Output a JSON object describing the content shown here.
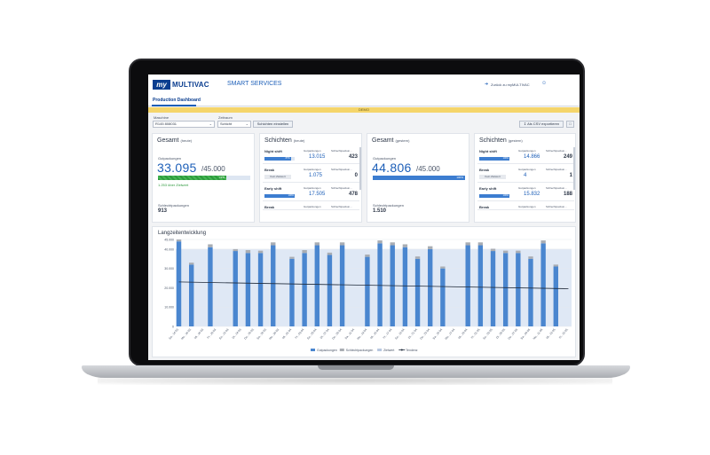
{
  "app": {
    "logo_badge": "my",
    "logo_text": "MULTIVAC",
    "logo_suffix": "SMART SERVICES",
    "header_link": "Zurück zu myMULTIVAC",
    "tab": "Production Dashboard",
    "demo_banner": "DEMO"
  },
  "controls": {
    "machine_label": "Maschine",
    "machine_value": "R145 808031",
    "period_label": "Zeitraum",
    "period_value": "Schicht",
    "shift_button": "Schichten einstellen",
    "export_button": "Als CSV exportieren"
  },
  "cards": {
    "gesamt_heute": {
      "title": "Gesamt",
      "subtitle": "(heute)",
      "good_label": "Gutpackungen",
      "value": "33.095",
      "target": "/45.000",
      "progress_pct": 74,
      "progress_label": "74%",
      "note": "1.253 über Zielwert",
      "bad_label": "Schlechtpackungen",
      "bad_value": "913"
    },
    "schichten_heute": {
      "title": "Schichten",
      "subtitle": "(heute)",
      "rows": [
        {
          "name": "Night shift",
          "h1": "Gutpackungen",
          "h2": "Schlechtpackun...",
          "v1": "13.015",
          "v2": "423",
          "bar_pct": 87,
          "bar_label": "87%",
          "pill": ""
        },
        {
          "name": "Break",
          "h1": "Gutpackungen",
          "h2": "Schlechtpackun...",
          "v1": "1.075",
          "v2": "0",
          "bar_pct": 0,
          "bar_label": "",
          "pill": "Kein Zielwert"
        },
        {
          "name": "Early shift",
          "h1": "Gutpackungen",
          "h2": "Schlechtpackun...",
          "v1": "17.505",
          "v2": "478",
          "bar_pct": 100,
          "bar_label": "100%",
          "pill": ""
        },
        {
          "name": "Break",
          "h1": "Gutpackungen",
          "h2": "Schlechtpackun...",
          "v1": "",
          "v2": "",
          "bar_pct": 0,
          "bar_label": "",
          "pill": ""
        }
      ]
    },
    "gesamt_gestern": {
      "title": "Gesamt",
      "subtitle": "(gestern)",
      "good_label": "Gutpackungen",
      "value": "44.806",
      "target": "/45.000",
      "progress_pct": 100,
      "progress_label": "100%",
      "bad_label": "Schlechtpackungen",
      "bad_value": "1.510"
    },
    "schichten_gestern": {
      "title": "Schichten",
      "subtitle": "(gestern)",
      "rows": [
        {
          "name": "Night shift",
          "h1": "Gutpackungen",
          "h2": "Schlechtpackun...",
          "v1": "14.866",
          "v2": "249",
          "bar_pct": 100,
          "bar_label": "100%",
          "pill": ""
        },
        {
          "name": "Break",
          "h1": "Gutpackungen",
          "h2": "Schlechtpackun...",
          "v1": "4",
          "v2": "1",
          "bar_pct": 0,
          "bar_label": "",
          "pill": "Kein Zielwert"
        },
        {
          "name": "Early shift",
          "h1": "Gutpackungen",
          "h2": "Schlechtpackun...",
          "v1": "15.832",
          "v2": "188",
          "bar_pct": 100,
          "bar_label": "100%",
          "pill": ""
        },
        {
          "name": "Break",
          "h1": "Gutpackungen",
          "h2": "Schlechtpackun...",
          "v1": "",
          "v2": "",
          "bar_pct": 0,
          "bar_label": "",
          "pill": ""
        }
      ]
    }
  },
  "chart_data": {
    "type": "bar",
    "title": "Langzeitentwicklung",
    "ylim": [
      0,
      45000
    ],
    "yticks": [
      "45.000",
      "40.000",
      "30.000",
      "20.000",
      "10.000",
      "0"
    ],
    "ytick_values": [
      45000,
      40000,
      30000,
      20000,
      10000,
      0
    ],
    "target_value": 40000,
    "categories": [
      "Sa., 14.03.",
      "So., 15.03.",
      "Mo., 16.03.",
      "Di., 17.03.",
      "Mi., 18.03.",
      "Do., 19.03.",
      "Fr., 20.03.",
      "Sa., 21.03.",
      "So., 22.03.",
      "Mo., 23.03.",
      "Di., 24.03.",
      "Mi., 25.03.",
      "Do., 26.03.",
      "Fr., 27.03.",
      "Sa., 28.03.",
      "So., 29.03.",
      "Mo., 30.03.",
      "Di., 31.03.",
      "Mi., 01.04.",
      "Do., 02.04.",
      "Fr., 03.04.",
      "Sa., 04.04.",
      "So., 05.04.",
      "Mo., 06.04.",
      "Di., 07.04.",
      "Mi., 08.04.",
      "Do., 09.04.",
      "Fr., 10.04.",
      "Sa., 11.04.",
      "So., 12.04.",
      "Mo., 13.04.",
      "Di., 14.04.",
      "Mi., 15.04.",
      "Do., 16.04.",
      "Fr., 17.04.",
      "Sa., 18.04.",
      "So., 19.04.",
      "Mo., 20.04.",
      "Di., 21.04.",
      "Mi., 22.04.",
      "Do., 23.04.",
      "Fr., 24.04.",
      "Sa., 25.04.",
      "So., 26.04.",
      "Mo., 27.04.",
      "Di., 28.04.",
      "Mi., 29.04.",
      "Do., 30.04.",
      "Fr., 01.05.",
      "Sa., 02.05.",
      "So., 03.05.",
      "Mo., 04.05.",
      "Di., 05.05.",
      "Mi., 06.05.",
      "Do., 07.05.",
      "Fr., 08.05.",
      "Sa., 09.05.",
      "So., 10.05.",
      "Mo., 11.05.",
      "Di., 12.05.",
      "Mi., 13.05.",
      "Do., 14.05.",
      "Fr., 15.05."
    ],
    "series": [
      {
        "name": "Gutpackungen",
        "color": "#4a86cf",
        "values": [
          44000,
          0,
          32000,
          0,
          0,
          41000,
          0,
          0,
          0,
          39000,
          0,
          38000,
          0,
          38000,
          0,
          42000,
          0,
          0,
          35000,
          0,
          38000,
          0,
          42000,
          0,
          37000,
          0,
          42000,
          0,
          0,
          0,
          36000,
          0,
          43000,
          0,
          42000,
          0,
          41000,
          0,
          35000,
          0,
          40000,
          0,
          30000,
          0,
          0,
          0,
          42000,
          0,
          42000,
          0,
          39000,
          0,
          38000,
          0,
          38000,
          0,
          35000,
          0,
          43000,
          0,
          31000,
          0,
          0
        ]
      },
      {
        "name": "Schlechtpackungen",
        "color": "#a9adb3",
        "values": [
          1000,
          0,
          1000,
          0,
          0,
          1500,
          0,
          0,
          0,
          1000,
          0,
          1500,
          0,
          1200,
          0,
          1500,
          0,
          0,
          1000,
          0,
          1500,
          0,
          1500,
          0,
          1200,
          0,
          1500,
          0,
          0,
          0,
          1200,
          0,
          1500,
          0,
          1500,
          0,
          1500,
          0,
          1200,
          0,
          1500,
          0,
          1000,
          0,
          0,
          0,
          1500,
          0,
          1500,
          0,
          1200,
          0,
          1200,
          0,
          1200,
          0,
          1200,
          0,
          1500,
          0,
          1000,
          0,
          0
        ]
      },
      {
        "name": "Zielwert",
        "color": "#dfe8f5"
      },
      {
        "name": "Tendenz",
        "color": "#1f2a3a",
        "from": 23000,
        "to": 19500
      }
    ],
    "legend_position": "bottom",
    "grid": true
  }
}
